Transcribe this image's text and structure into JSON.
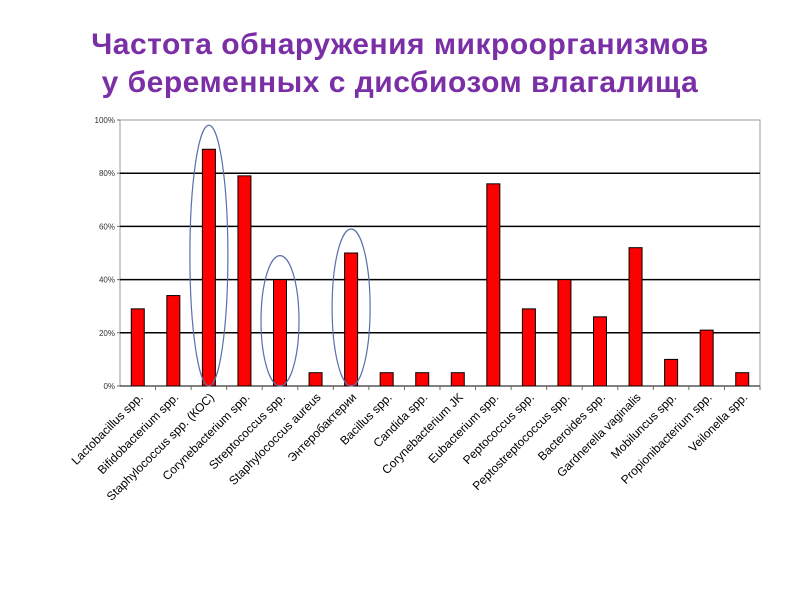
{
  "title": {
    "line1": "Частота обнаружения микроорганизмов",
    "line2": "у беременных с дисбиозом влагалища"
  },
  "colors": {
    "title": "#7b2fa6",
    "bar": "#ff0000",
    "ellipse": "#5a6fa8"
  },
  "chart_data": {
    "type": "bar",
    "categories": [
      "Lactobacillus spp.",
      "Bifidobacterium spp.",
      "Staphylococcus spp. (КОС)",
      "Corynebacterium spp.",
      "Streptococcus spp.",
      "Staphylococcus aureus",
      "Энтеробактерии",
      "Bacillus spp.",
      "Candida spp.",
      "Corynebacterium JK",
      "Eubacterium spp.",
      "Peptococcus spp.",
      "Peptostreptococcus spp.",
      "Bacteroides spp.",
      "Gardnerella vaginalis",
      "Mobiluncus spp.",
      "Propionibacterium spp.",
      "Veilonella spp."
    ],
    "values": [
      29,
      34,
      89,
      79,
      40,
      5,
      50,
      5,
      5,
      5,
      76,
      29,
      40,
      26,
      52,
      10,
      21,
      5
    ],
    "ylim": [
      0,
      100
    ],
    "yticks": [
      "0%",
      "20%",
      "40%",
      "60%",
      "80%",
      "100%"
    ],
    "highlighted_categories": [
      "Staphylococcus spp. (КОС)",
      "Streptococcus spp.",
      "Энтеробактерии"
    ],
    "grid": true,
    "legend": "none"
  }
}
